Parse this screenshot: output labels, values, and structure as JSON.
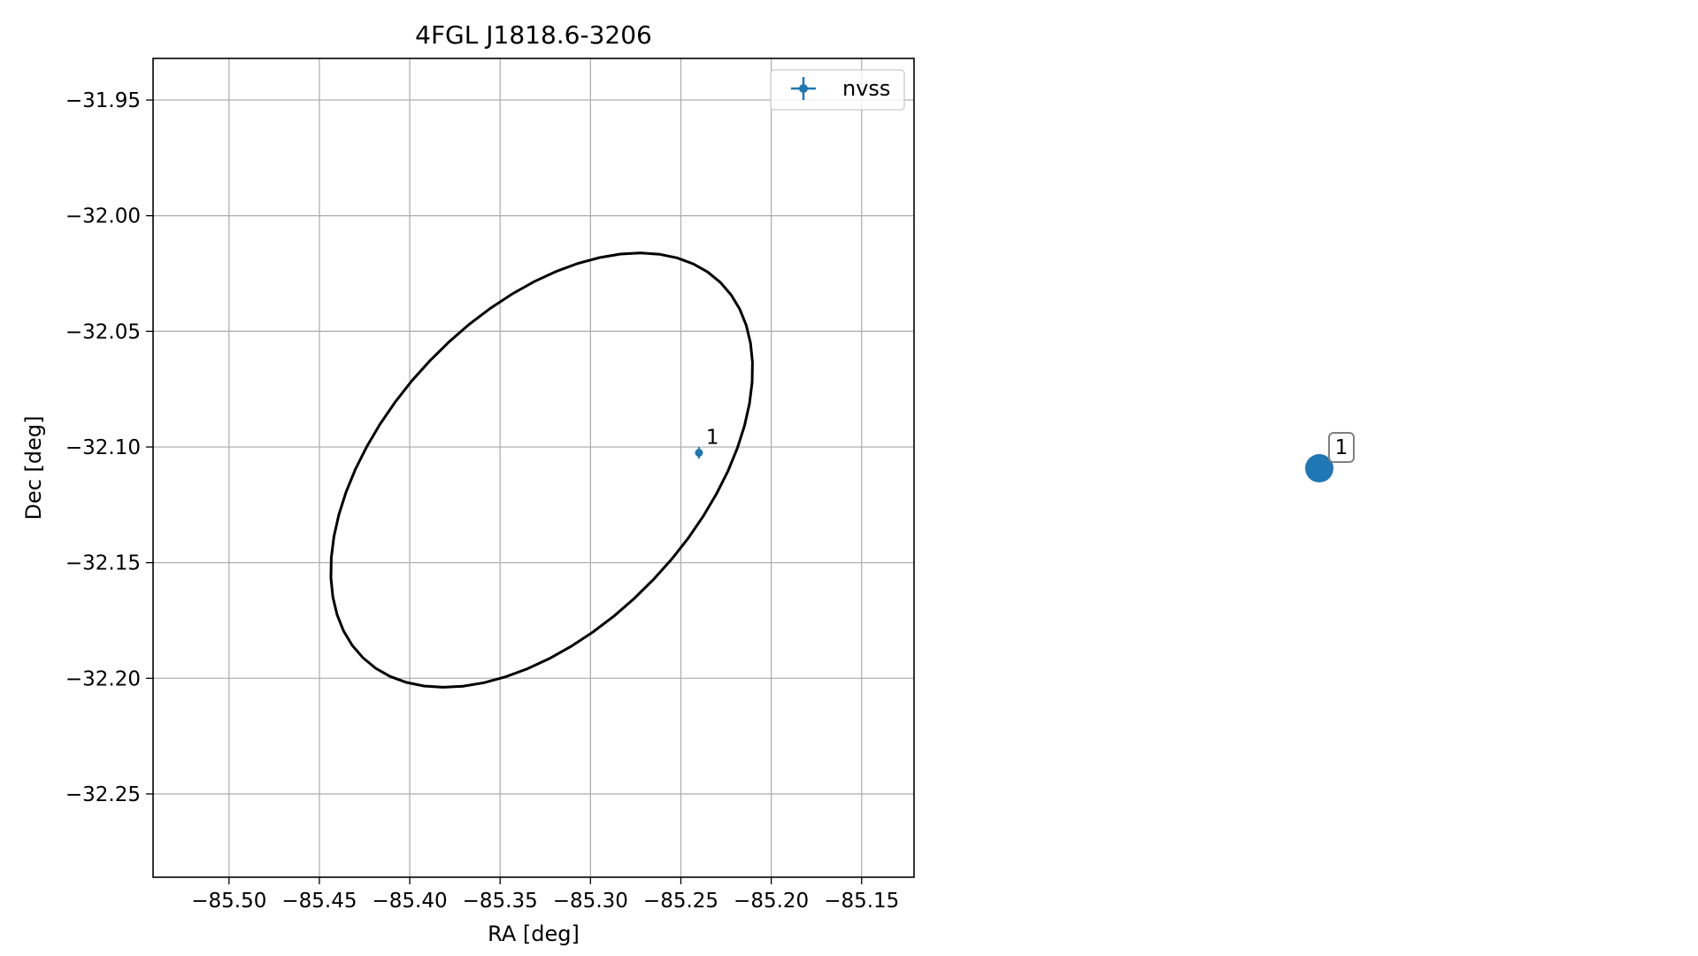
{
  "chart_data": [
    {
      "type": "scatter",
      "title": "4FGL J1818.6-3206",
      "xlabel": "RA [deg]",
      "ylabel": "Dec [deg]",
      "xlim": [
        -85.542,
        -85.121
      ],
      "ylim": [
        -32.286,
        -31.932
      ],
      "grid": true,
      "legend_position": "top-right",
      "xticks": [
        -85.5,
        -85.45,
        -85.4,
        -85.35,
        -85.3,
        -85.25,
        -85.2,
        -85.15
      ],
      "xtick_labels": [
        "−85.50",
        "−85.45",
        "−85.40",
        "−85.35",
        "−85.30",
        "−85.25",
        "−85.20",
        "−85.15"
      ],
      "yticks": [
        -31.95,
        -32.0,
        -32.05,
        -32.1,
        -32.15,
        -32.2,
        -32.25
      ],
      "ytick_labels": [
        "−31.95",
        "−32.00",
        "−32.05",
        "−32.10",
        "−32.15",
        "−32.20",
        "−32.25"
      ],
      "series": [
        {
          "name": "nvss",
          "color": "#1f77b4",
          "marker": "errorbar-point",
          "points": [
            {
              "x": -85.24,
              "y": -32.1025,
              "xerr": 0.0005,
              "yerr": 0.0025,
              "label": "1"
            }
          ]
        }
      ],
      "error_ellipse": {
        "color": "#000000",
        "center_x": -85.327,
        "center_y": -32.11,
        "semi_major": 0.1298,
        "semi_minor": 0.0747,
        "angle_deg": 32.4
      }
    },
    {
      "type": "scatter",
      "grid": false,
      "axes_visible": false,
      "series": [
        {
          "color": "#1f77b4",
          "points": [
            {
              "x": 0,
              "y": 0,
              "label": "1"
            }
          ]
        }
      ]
    }
  ]
}
